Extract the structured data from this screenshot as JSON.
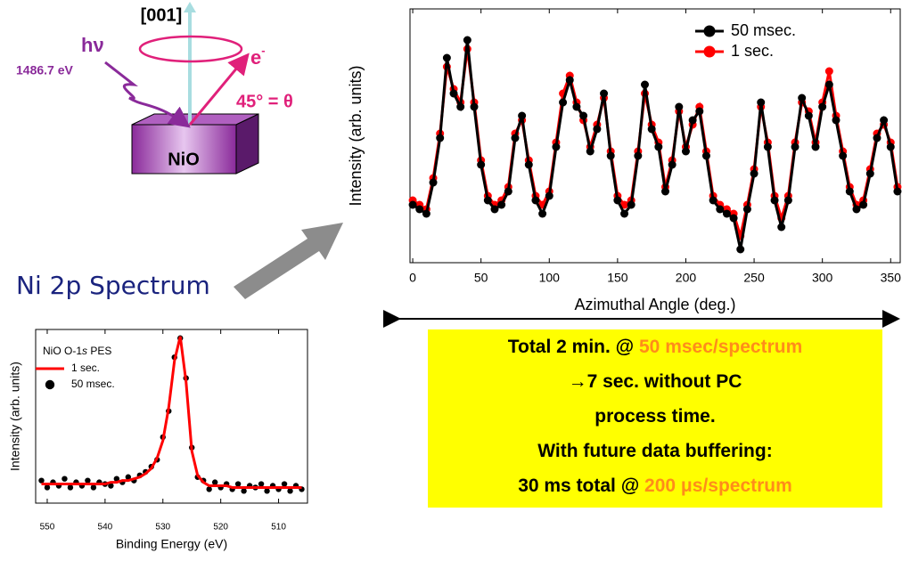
{
  "diagram": {
    "direction": "[001]",
    "photon": "hν",
    "energy": "1486.7 eV",
    "electron": "e",
    "electron_sup": "-",
    "angle": "45° = θ",
    "sample": "NiO"
  },
  "caption": "Ni 2p Spectrum",
  "box": {
    "highlight_color": "#ff8c1a",
    "lines": [
      {
        "text": "Total 2 min. @ ",
        "highlight": "50 msec/spectrum"
      },
      {
        "text": "→7 sec. without PC"
      },
      {
        "text": "process time."
      },
      {
        "text": "With future data buffering:"
      },
      {
        "text": "30 ms total @ ",
        "highlight": "200 μs/spectrum"
      }
    ]
  },
  "chart_data": [
    {
      "type": "line",
      "xlabel": "Azimuthal Angle (deg.)",
      "ylabel": "Intensity (arb. units)",
      "xlim": [
        -2,
        357
      ],
      "ylim": [
        0,
        5.7
      ],
      "xticks": [
        0,
        50,
        100,
        150,
        200,
        250,
        300,
        350
      ],
      "legend": "upper right",
      "x": [
        0,
        5,
        10,
        15,
        20,
        25,
        30,
        35,
        40,
        45,
        50,
        55,
        60,
        65,
        70,
        75,
        80,
        85,
        90,
        95,
        100,
        105,
        110,
        115,
        120,
        125,
        130,
        135,
        140,
        145,
        150,
        155,
        160,
        165,
        170,
        175,
        180,
        185,
        190,
        195,
        200,
        205,
        210,
        215,
        220,
        225,
        230,
        235,
        240,
        245,
        250,
        255,
        260,
        265,
        270,
        275,
        280,
        285,
        290,
        295,
        300,
        305,
        310,
        315,
        320,
        325,
        330,
        335,
        340,
        345,
        350,
        355
      ],
      "series": [
        {
          "name": "50 msec.",
          "color": "#000000",
          "mode": "lines+markers",
          "values": [
            1.3,
            1.2,
            1.1,
            1.8,
            2.8,
            4.6,
            3.8,
            3.5,
            5.0,
            3.5,
            2.2,
            1.4,
            1.2,
            1.3,
            1.6,
            2.8,
            3.3,
            2.2,
            1.4,
            1.1,
            1.5,
            2.6,
            3.6,
            4.1,
            3.5,
            3.3,
            2.5,
            3.0,
            3.8,
            2.4,
            1.4,
            1.1,
            1.3,
            2.4,
            4.0,
            3.0,
            2.6,
            1.6,
            2.2,
            3.5,
            2.5,
            3.2,
            3.4,
            2.4,
            1.4,
            1.2,
            1.1,
            1.0,
            0.3,
            1.2,
            2.0,
            3.6,
            2.6,
            1.4,
            0.8,
            1.4,
            2.6,
            3.7,
            3.3,
            2.6,
            3.5,
            4.0,
            3.2,
            2.4,
            1.6,
            1.2,
            1.3,
            2.0,
            2.8,
            3.2,
            2.6,
            1.6
          ]
        },
        {
          "name": "1 sec.",
          "color": "#ff0000",
          "mode": "lines+markers",
          "values": [
            1.4,
            1.3,
            1.2,
            1.9,
            2.9,
            4.4,
            3.9,
            3.6,
            4.8,
            3.6,
            2.3,
            1.5,
            1.3,
            1.4,
            1.7,
            2.9,
            3.2,
            2.3,
            1.5,
            1.3,
            1.6,
            2.7,
            3.8,
            4.2,
            3.6,
            3.2,
            2.6,
            3.1,
            3.7,
            2.5,
            1.5,
            1.3,
            1.4,
            2.5,
            3.8,
            3.1,
            2.7,
            1.7,
            2.3,
            3.4,
            2.6,
            3.1,
            3.5,
            2.5,
            1.5,
            1.3,
            1.2,
            1.1,
            0.6,
            1.3,
            2.1,
            3.5,
            2.7,
            1.5,
            1.0,
            1.5,
            2.7,
            3.6,
            3.4,
            2.7,
            3.6,
            4.3,
            3.3,
            2.5,
            1.7,
            1.3,
            1.4,
            2.1,
            2.9,
            3.1,
            2.7,
            1.7
          ]
        }
      ]
    },
    {
      "type": "line",
      "xlabel": "Binding Energy (eV)",
      "ylabel": "Intensity (arb. units)",
      "legend_title": [
        "NiO O-1",
        "s",
        " PES"
      ],
      "xlim": [
        552,
        505
      ],
      "ylim": [
        0,
        10
      ],
      "xticks": [
        550,
        540,
        530,
        520,
        510
      ],
      "legend": "upper left",
      "x": [
        551,
        550,
        549,
        548,
        547,
        546,
        545,
        544,
        543,
        542,
        541,
        540,
        539,
        538,
        537,
        536,
        535,
        534,
        533,
        532,
        531,
        530,
        529,
        528,
        527,
        526,
        525,
        524,
        523,
        522,
        521,
        520,
        519,
        518,
        517,
        516,
        515,
        514,
        513,
        512,
        511,
        510,
        509,
        508,
        507,
        506
      ],
      "series": [
        {
          "name": "1 sec.",
          "color": "#ff0000",
          "mode": "lines",
          "values": [
            1.1,
            1.1,
            1.1,
            1.1,
            1.1,
            1.1,
            1.1,
            1.1,
            1.1,
            1.1,
            1.1,
            1.1,
            1.2,
            1.2,
            1.3,
            1.3,
            1.4,
            1.5,
            1.7,
            2.0,
            2.6,
            3.6,
            5.5,
            8.2,
            9.6,
            7.0,
            3.0,
            1.6,
            1.2,
            1.0,
            1.0,
            1.0,
            1.0,
            0.9,
            0.9,
            0.9,
            0.9,
            0.9,
            0.9,
            0.9,
            0.9,
            0.9,
            0.9,
            0.9,
            0.9,
            0.9
          ]
        },
        {
          "name": "50 msec.",
          "color": "#000000",
          "mode": "markers",
          "values": [
            1.3,
            0.9,
            1.2,
            1.0,
            1.4,
            0.9,
            1.2,
            1.0,
            1.3,
            0.9,
            1.2,
            1.1,
            1.0,
            1.4,
            1.2,
            1.5,
            1.3,
            1.6,
            1.8,
            2.1,
            2.5,
            3.8,
            5.3,
            8.4,
            9.5,
            7.2,
            3.2,
            1.5,
            1.3,
            0.8,
            1.2,
            0.9,
            1.1,
            0.8,
            1.1,
            0.7,
            1.0,
            0.9,
            1.1,
            0.7,
            1.0,
            0.8,
            1.1,
            0.7,
            1.0,
            0.8
          ]
        }
      ]
    }
  ]
}
